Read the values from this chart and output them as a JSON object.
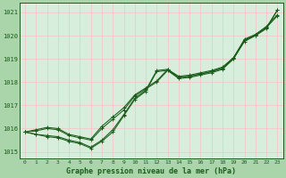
{
  "title": "Graphe pression niveau de la mer (hPa)",
  "bg_color": "#aad4aa",
  "plot_bg_color": "#d8eedd",
  "grid_color": "#f0c8c8",
  "line_color": "#1a5c1a",
  "xlim": [
    -0.5,
    23.5
  ],
  "ylim": [
    1014.7,
    1021.4
  ],
  "yticks": [
    1015,
    1016,
    1017,
    1018,
    1019,
    1020,
    1021
  ],
  "xticks": [
    0,
    1,
    2,
    3,
    4,
    5,
    6,
    7,
    8,
    9,
    10,
    11,
    12,
    13,
    14,
    15,
    16,
    17,
    18,
    19,
    20,
    21,
    22,
    23
  ],
  "series": [
    {
      "x": [
        0,
        1,
        2,
        3,
        4,
        5,
        6,
        7,
        8,
        9,
        10,
        11,
        12,
        13,
        14,
        15,
        16,
        17,
        18,
        19,
        20,
        21,
        22,
        23
      ],
      "y": [
        1015.85,
        1015.95,
        1016.05,
        1016.0,
        1015.75,
        1015.65,
        1015.55,
        1016.1,
        1016.5,
        1016.9,
        1017.45,
        1017.75,
        1018.05,
        1018.55,
        1018.25,
        1018.3,
        1018.4,
        1018.5,
        1018.65,
        1019.05,
        1019.8,
        1020.05,
        1020.4,
        1020.9
      ]
    },
    {
      "x": [
        0,
        1,
        2,
        3,
        4,
        5,
        6,
        7,
        8,
        9,
        10,
        11,
        12,
        13,
        14,
        15,
        16,
        17,
        18,
        19,
        20,
        21,
        22,
        23
      ],
      "y": [
        1015.85,
        1015.9,
        1016.0,
        1015.95,
        1015.7,
        1015.6,
        1015.5,
        1016.0,
        1016.4,
        1016.8,
        1017.4,
        1017.7,
        1018.0,
        1018.5,
        1018.2,
        1018.25,
        1018.35,
        1018.45,
        1018.6,
        1019.0,
        1019.75,
        1020.0,
        1020.35,
        1020.85
      ]
    },
    {
      "x": [
        0,
        1,
        2,
        3,
        4,
        5,
        6,
        7,
        8,
        9,
        10,
        11,
        12,
        13,
        14,
        15,
        16,
        17,
        18,
        19,
        20,
        21,
        22,
        23
      ],
      "y": [
        1015.85,
        1015.75,
        1015.7,
        1015.65,
        1015.5,
        1015.4,
        1015.2,
        1015.5,
        1015.95,
        1016.6,
        1017.3,
        1017.65,
        1018.5,
        1018.55,
        1018.2,
        1018.25,
        1018.35,
        1018.45,
        1018.6,
        1019.05,
        1019.85,
        1020.05,
        1020.35,
        1021.1
      ]
    },
    {
      "x": [
        0,
        1,
        2,
        3,
        4,
        5,
        6,
        7,
        8,
        9,
        10,
        11,
        12,
        13,
        14,
        15,
        16,
        17,
        18,
        19,
        20,
        21,
        22,
        23
      ],
      "y": [
        1015.85,
        1015.75,
        1015.65,
        1015.6,
        1015.45,
        1015.35,
        1015.15,
        1015.45,
        1015.85,
        1016.55,
        1017.25,
        1017.6,
        1018.45,
        1018.5,
        1018.15,
        1018.2,
        1018.3,
        1018.4,
        1018.55,
        1019.0,
        1019.8,
        1020.0,
        1020.3,
        1021.1
      ]
    }
  ]
}
